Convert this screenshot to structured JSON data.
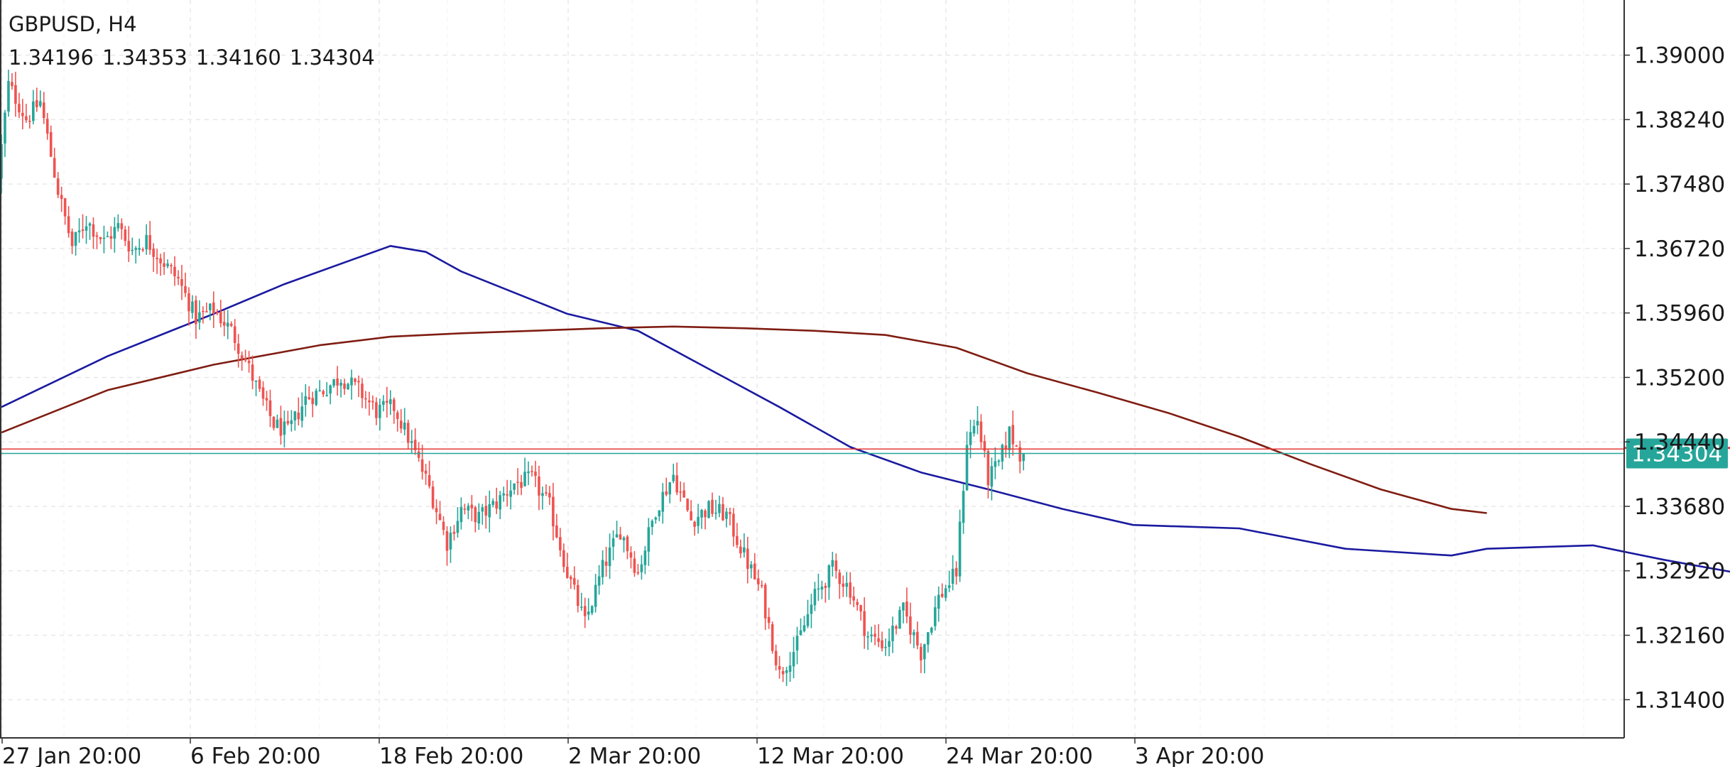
{
  "chart_header": {
    "symbol": "GBPUSD",
    "timeframe": "H4",
    "open": "1.34196",
    "high": "1.34353",
    "low": "1.34160",
    "close": "1.34304"
  },
  "colors": {
    "bull": "#26a69a",
    "bear": "#ef5350",
    "ma_fast": "#1a1aa0",
    "ma_slow": "#7f1d12",
    "grid": "#e8e8e8",
    "price_tag": "#26a69a",
    "axis": "#333333"
  },
  "chart_data": {
    "type": "candlestick",
    "title": "GBPUSD, H4",
    "ylim": [
      1.3095,
      1.3965
    ],
    "y_ticks": [
      "1.39000",
      "1.38240",
      "1.37480",
      "1.36720",
      "1.35960",
      "1.35200",
      "1.34440",
      "1.33680",
      "1.32920",
      "1.32160",
      "1.31400"
    ],
    "x_ticks": [
      "27 Jan 20:00",
      "6 Feb 20:00",
      "18 Feb 20:00",
      "2 Mar 20:00",
      "12 Mar 20:00",
      "24 Mar 20:00",
      "3 Apr 20:00"
    ],
    "grid": true,
    "current_price": "1.34304",
    "price_line_bid": 1.34304,
    "price_line_ask": 1.34356,
    "bar_count": 240,
    "close_path": [
      [
        0,
        1.3755
      ],
      [
        3,
        1.3865
      ],
      [
        8,
        1.3825
      ],
      [
        12,
        1.3845
      ],
      [
        17,
        1.374
      ],
      [
        21,
        1.3675
      ],
      [
        25,
        1.3705
      ],
      [
        30,
        1.368
      ],
      [
        34,
        1.3698
      ],
      [
        38,
        1.367
      ],
      [
        42,
        1.3682
      ],
      [
        46,
        1.366
      ],
      [
        51,
        1.3635
      ],
      [
        56,
        1.359
      ],
      [
        61,
        1.36
      ],
      [
        66,
        1.3575
      ],
      [
        70,
        1.354
      ],
      [
        74,
        1.35
      ],
      [
        78,
        1.3465
      ],
      [
        82,
        1.3455
      ],
      [
        87,
        1.3495
      ],
      [
        92,
        1.3505
      ],
      [
        97,
        1.352
      ],
      [
        102,
        1.3505
      ],
      [
        107,
        1.348
      ],
      [
        112,
        1.3485
      ],
      [
        117,
        1.344
      ],
      [
        122,
        1.339
      ],
      [
        127,
        1.3325
      ],
      [
        131,
        1.3365
      ],
      [
        136,
        1.3355
      ],
      [
        141,
        1.3372
      ],
      [
        146,
        1.3395
      ],
      [
        151,
        1.34
      ],
      [
        156,
        1.3368
      ],
      [
        161,
        1.329
      ],
      [
        166,
        1.323
      ],
      [
        171,
        1.3295
      ],
      [
        176,
        1.334
      ],
      [
        181,
        1.329
      ],
      [
        186,
        1.3365
      ],
      [
        191,
        1.3405
      ],
      [
        196,
        1.3352
      ],
      [
        201,
        1.3365
      ],
      [
        206,
        1.3358
      ],
      [
        211,
        1.331
      ],
      [
        216,
        1.3265
      ],
      [
        221,
        1.317
      ],
      [
        226,
        1.3205
      ],
      [
        231,
        1.3262
      ],
      [
        236,
        1.3295
      ],
      [
        241,
        1.327
      ],
      [
        246,
        1.3215
      ],
      [
        251,
        1.3205
      ],
      [
        256,
        1.3245
      ],
      [
        261,
        1.3195
      ],
      [
        266,
        1.326
      ],
      [
        271,
        1.329
      ],
      [
        274,
        1.3445
      ],
      [
        277,
        1.347
      ],
      [
        280,
        1.34
      ],
      [
        283,
        1.3418
      ],
      [
        286,
        1.3455
      ],
      [
        289,
        1.343
      ]
    ],
    "series": [
      {
        "values": [
          [
            0,
            1.3485
          ],
          [
            30,
            1.3545
          ],
          [
            60,
            1.3595
          ],
          [
            80,
            1.363
          ],
          [
            100,
            1.366
          ],
          [
            110,
            1.3675
          ],
          [
            120,
            1.3668
          ],
          [
            130,
            1.3645
          ],
          [
            160,
            1.3595
          ],
          [
            180,
            1.3575
          ],
          [
            200,
            1.353
          ],
          [
            220,
            1.3485
          ],
          [
            240,
            1.3438
          ],
          [
            260,
            1.3408
          ],
          [
            280,
            1.3387
          ],
          [
            300,
            1.3365
          ],
          [
            320,
            1.3346
          ],
          [
            350,
            1.3342
          ],
          [
            380,
            1.3318
          ],
          [
            410,
            1.331
          ],
          [
            420,
            1.3318
          ],
          [
            450,
            1.3322
          ],
          [
            470,
            1.3305
          ],
          [
            490,
            1.329
          ]
        ]
      },
      {
        "values": [
          [
            0,
            1.3455
          ],
          [
            30,
            1.3505
          ],
          [
            60,
            1.3535
          ],
          [
            90,
            1.3558
          ],
          [
            110,
            1.3568
          ],
          [
            130,
            1.3572
          ],
          [
            150,
            1.3575
          ],
          [
            170,
            1.3578
          ],
          [
            190,
            1.358
          ],
          [
            210,
            1.3578
          ],
          [
            230,
            1.3575
          ],
          [
            250,
            1.357
          ],
          [
            270,
            1.3555
          ],
          [
            290,
            1.3525
          ],
          [
            310,
            1.3502
          ],
          [
            330,
            1.3478
          ],
          [
            350,
            1.345
          ],
          [
            370,
            1.3418
          ],
          [
            390,
            1.3388
          ],
          [
            410,
            1.3365
          ],
          [
            420,
            1.336
          ]
        ]
      }
    ]
  }
}
